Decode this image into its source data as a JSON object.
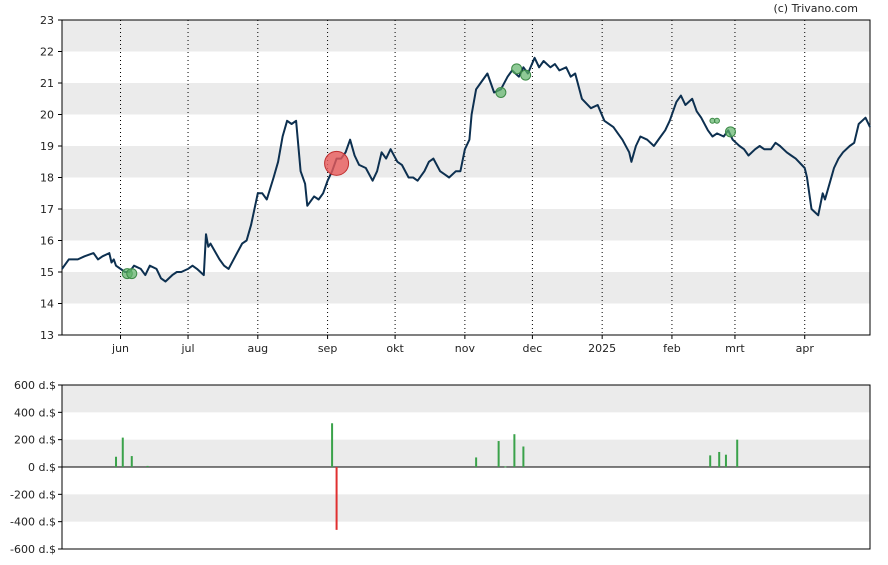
{
  "copyright": "(c) Trivano.com",
  "colors": {
    "band": "#ebebeb",
    "line": "#0d3050",
    "buy": "#3aa24a",
    "sell": "#e03030",
    "buy_marker": "#5fb36a",
    "sell_marker": "#e85a5a"
  },
  "chart_data": [
    {
      "type": "line",
      "name": "price",
      "ylim": [
        13,
        23
      ],
      "y_ticks": [
        "13",
        "14",
        "15",
        "16",
        "17",
        "18",
        "19",
        "20",
        "21",
        "22",
        "23"
      ],
      "grid": "alternating horizontal bands; dotted vertical month lines",
      "x_range": [
        "2024-05-06",
        "2025-04-30"
      ],
      "month_ticks": [
        {
          "label": "jun",
          "date": "2024-06-01"
        },
        {
          "label": "jul",
          "date": "2024-07-01"
        },
        {
          "label": "aug",
          "date": "2024-08-01"
        },
        {
          "label": "sep",
          "date": "2024-09-01"
        },
        {
          "label": "okt",
          "date": "2024-10-01"
        },
        {
          "label": "nov",
          "date": "2024-11-01"
        },
        {
          "label": "dec",
          "date": "2024-12-01"
        },
        {
          "label": "2025",
          "date": "2025-01-01"
        },
        {
          "label": "feb",
          "date": "2025-02-01"
        },
        {
          "label": "mrt",
          "date": "2025-03-01"
        },
        {
          "label": "apr",
          "date": "2025-04-01"
        }
      ],
      "series": [
        {
          "points": [
            [
              "2024-05-06",
              15.1
            ],
            [
              "2024-05-09",
              15.4
            ],
            [
              "2024-05-13",
              15.4
            ],
            [
              "2024-05-16",
              15.5
            ],
            [
              "2024-05-20",
              15.6
            ],
            [
              "2024-05-22",
              15.4
            ],
            [
              "2024-05-24",
              15.5
            ],
            [
              "2024-05-27",
              15.6
            ],
            [
              "2024-05-28",
              15.3
            ],
            [
              "2024-05-29",
              15.4
            ],
            [
              "2024-05-30",
              15.2
            ],
            [
              "2024-06-03",
              15.0
            ],
            [
              "2024-06-05",
              15.0
            ],
            [
              "2024-06-07",
              15.2
            ],
            [
              "2024-06-10",
              15.1
            ],
            [
              "2024-06-12",
              14.9
            ],
            [
              "2024-06-14",
              15.2
            ],
            [
              "2024-06-17",
              15.1
            ],
            [
              "2024-06-19",
              14.8
            ],
            [
              "2024-06-21",
              14.7
            ],
            [
              "2024-06-24",
              14.9
            ],
            [
              "2024-06-26",
              15.0
            ],
            [
              "2024-06-28",
              15.0
            ],
            [
              "2024-07-01",
              15.1
            ],
            [
              "2024-07-03",
              15.2
            ],
            [
              "2024-07-05",
              15.1
            ],
            [
              "2024-07-08",
              14.9
            ],
            [
              "2024-07-09",
              16.2
            ],
            [
              "2024-07-10",
              15.8
            ],
            [
              "2024-07-11",
              15.9
            ],
            [
              "2024-07-15",
              15.4
            ],
            [
              "2024-07-17",
              15.2
            ],
            [
              "2024-07-19",
              15.1
            ],
            [
              "2024-07-22",
              15.5
            ],
            [
              "2024-07-25",
              15.9
            ],
            [
              "2024-07-27",
              16.0
            ],
            [
              "2024-07-29",
              16.5
            ],
            [
              "2024-08-01",
              17.5
            ],
            [
              "2024-08-03",
              17.5
            ],
            [
              "2024-08-05",
              17.3
            ],
            [
              "2024-08-08",
              18.0
            ],
            [
              "2024-08-10",
              18.5
            ],
            [
              "2024-08-12",
              19.3
            ],
            [
              "2024-08-14",
              19.8
            ],
            [
              "2024-08-16",
              19.7
            ],
            [
              "2024-08-18",
              19.8
            ],
            [
              "2024-08-20",
              18.2
            ],
            [
              "2024-08-22",
              17.8
            ],
            [
              "2024-08-23",
              17.1
            ],
            [
              "2024-08-26",
              17.4
            ],
            [
              "2024-08-28",
              17.3
            ],
            [
              "2024-08-30",
              17.5
            ],
            [
              "2024-09-01",
              17.9
            ],
            [
              "2024-09-03",
              18.2
            ],
            [
              "2024-09-05",
              18.6
            ],
            [
              "2024-09-07",
              18.6
            ],
            [
              "2024-09-09",
              18.8
            ],
            [
              "2024-09-11",
              19.2
            ],
            [
              "2024-09-13",
              18.7
            ],
            [
              "2024-09-15",
              18.4
            ],
            [
              "2024-09-18",
              18.3
            ],
            [
              "2024-09-21",
              17.9
            ],
            [
              "2024-09-23",
              18.2
            ],
            [
              "2024-09-25",
              18.8
            ],
            [
              "2024-09-27",
              18.6
            ],
            [
              "2024-09-29",
              18.9
            ],
            [
              "2024-10-02",
              18.5
            ],
            [
              "2024-10-04",
              18.4
            ],
            [
              "2024-10-07",
              18.0
            ],
            [
              "2024-10-09",
              18.0
            ],
            [
              "2024-10-11",
              17.9
            ],
            [
              "2024-10-14",
              18.2
            ],
            [
              "2024-10-16",
              18.5
            ],
            [
              "2024-10-18",
              18.6
            ],
            [
              "2024-10-21",
              18.2
            ],
            [
              "2024-10-23",
              18.1
            ],
            [
              "2024-10-25",
              18.0
            ],
            [
              "2024-10-28",
              18.2
            ],
            [
              "2024-10-30",
              18.2
            ],
            [
              "2024-11-01",
              18.9
            ],
            [
              "2024-11-03",
              19.2
            ],
            [
              "2024-11-04",
              20.0
            ],
            [
              "2024-11-06",
              20.8
            ],
            [
              "2024-11-08",
              21.0
            ],
            [
              "2024-11-11",
              21.3
            ],
            [
              "2024-11-14",
              20.7
            ],
            [
              "2024-11-17",
              20.8
            ],
            [
              "2024-11-20",
              21.2
            ],
            [
              "2024-11-22",
              21.4
            ],
            [
              "2024-11-25",
              21.2
            ],
            [
              "2024-11-27",
              21.5
            ],
            [
              "2024-11-29",
              21.3
            ],
            [
              "2024-12-02",
              21.8
            ],
            [
              "2024-12-04",
              21.5
            ],
            [
              "2024-12-06",
              21.7
            ],
            [
              "2024-12-09",
              21.5
            ],
            [
              "2024-12-11",
              21.6
            ],
            [
              "2024-12-13",
              21.4
            ],
            [
              "2024-12-16",
              21.5
            ],
            [
              "2024-12-18",
              21.2
            ],
            [
              "2024-12-20",
              21.3
            ],
            [
              "2024-12-23",
              20.5
            ],
            [
              "2024-12-27",
              20.2
            ],
            [
              "2024-12-30",
              20.3
            ],
            [
              "2025-01-02",
              19.8
            ],
            [
              "2025-01-06",
              19.6
            ],
            [
              "2025-01-08",
              19.4
            ],
            [
              "2025-01-10",
              19.2
            ],
            [
              "2025-01-13",
              18.8
            ],
            [
              "2025-01-14",
              18.5
            ],
            [
              "2025-01-16",
              19.0
            ],
            [
              "2025-01-18",
              19.3
            ],
            [
              "2025-01-21",
              19.2
            ],
            [
              "2025-01-24",
              19.0
            ],
            [
              "2025-01-27",
              19.3
            ],
            [
              "2025-01-29",
              19.5
            ],
            [
              "2025-01-31",
              19.8
            ],
            [
              "2025-02-03",
              20.4
            ],
            [
              "2025-02-05",
              20.6
            ],
            [
              "2025-02-07",
              20.3
            ],
            [
              "2025-02-10",
              20.5
            ],
            [
              "2025-02-12",
              20.1
            ],
            [
              "2025-02-14",
              19.9
            ],
            [
              "2025-02-17",
              19.5
            ],
            [
              "2025-02-19",
              19.3
            ],
            [
              "2025-02-21",
              19.4
            ],
            [
              "2025-02-24",
              19.3
            ],
            [
              "2025-02-26",
              19.5
            ],
            [
              "2025-02-28",
              19.2
            ],
            [
              "2025-03-03",
              19.0
            ],
            [
              "2025-03-05",
              18.9
            ],
            [
              "2025-03-07",
              18.7
            ],
            [
              "2025-03-10",
              18.9
            ],
            [
              "2025-03-12",
              19.0
            ],
            [
              "2025-03-14",
              18.9
            ],
            [
              "2025-03-17",
              18.9
            ],
            [
              "2025-03-19",
              19.1
            ],
            [
              "2025-03-21",
              19.0
            ],
            [
              "2025-03-24",
              18.8
            ],
            [
              "2025-03-26",
              18.7
            ],
            [
              "2025-03-28",
              18.6
            ],
            [
              "2025-04-01",
              18.3
            ],
            [
              "2025-04-02",
              18.0
            ],
            [
              "2025-04-04",
              17.0
            ],
            [
              "2025-04-07",
              16.8
            ],
            [
              "2025-04-09",
              17.5
            ],
            [
              "2025-04-10",
              17.3
            ],
            [
              "2025-04-12",
              17.8
            ],
            [
              "2025-04-14",
              18.3
            ],
            [
              "2025-04-16",
              18.6
            ],
            [
              "2025-04-18",
              18.8
            ],
            [
              "2025-04-21",
              19.0
            ],
            [
              "2025-04-23",
              19.1
            ],
            [
              "2025-04-25",
              19.7
            ],
            [
              "2025-04-28",
              19.9
            ],
            [
              "2025-04-30",
              19.6
            ]
          ]
        }
      ],
      "markers": [
        {
          "date": "2024-06-04",
          "value": 14.95,
          "type": "buy",
          "size": "small"
        },
        {
          "date": "2024-06-06",
          "value": 14.95,
          "type": "buy",
          "size": "small"
        },
        {
          "date": "2024-09-05",
          "value": 18.45,
          "type": "sell",
          "size": "large"
        },
        {
          "date": "2024-11-17",
          "value": 20.7,
          "type": "buy",
          "size": "small"
        },
        {
          "date": "2024-11-24",
          "value": 21.45,
          "type": "buy",
          "size": "small"
        },
        {
          "date": "2024-11-28",
          "value": 21.25,
          "type": "buy",
          "size": "small"
        },
        {
          "date": "2025-02-19",
          "value": 19.8,
          "type": "buy",
          "size": "tiny"
        },
        {
          "date": "2025-02-21",
          "value": 19.8,
          "type": "buy",
          "size": "tiny"
        },
        {
          "date": "2025-02-27",
          "value": 19.45,
          "type": "buy",
          "size": "small"
        }
      ]
    },
    {
      "type": "bar",
      "name": "insider transactions",
      "ylim": [
        -600,
        600
      ],
      "y_ticks": [
        "600 d.$",
        "400 d.$",
        "200 d.$",
        "0 d.$",
        "-200 d.$",
        "-400 d.$",
        "-600 d.$"
      ],
      "bars": [
        {
          "date": "2024-05-30",
          "value": 75
        },
        {
          "date": "2024-06-02",
          "value": 215
        },
        {
          "date": "2024-06-06",
          "value": 80
        },
        {
          "date": "2024-06-13",
          "value": 8
        },
        {
          "date": "2024-09-03",
          "value": 320
        },
        {
          "date": "2024-09-05",
          "value": -460
        },
        {
          "date": "2024-11-06",
          "value": 70
        },
        {
          "date": "2024-11-16",
          "value": 190
        },
        {
          "date": "2024-11-19",
          "value": 5
        },
        {
          "date": "2024-11-23",
          "value": 240
        },
        {
          "date": "2024-11-27",
          "value": 150
        },
        {
          "date": "2025-02-18",
          "value": 85
        },
        {
          "date": "2025-02-22",
          "value": 110
        },
        {
          "date": "2025-02-25",
          "value": 90
        },
        {
          "date": "2025-03-02",
          "value": 200
        }
      ]
    }
  ]
}
